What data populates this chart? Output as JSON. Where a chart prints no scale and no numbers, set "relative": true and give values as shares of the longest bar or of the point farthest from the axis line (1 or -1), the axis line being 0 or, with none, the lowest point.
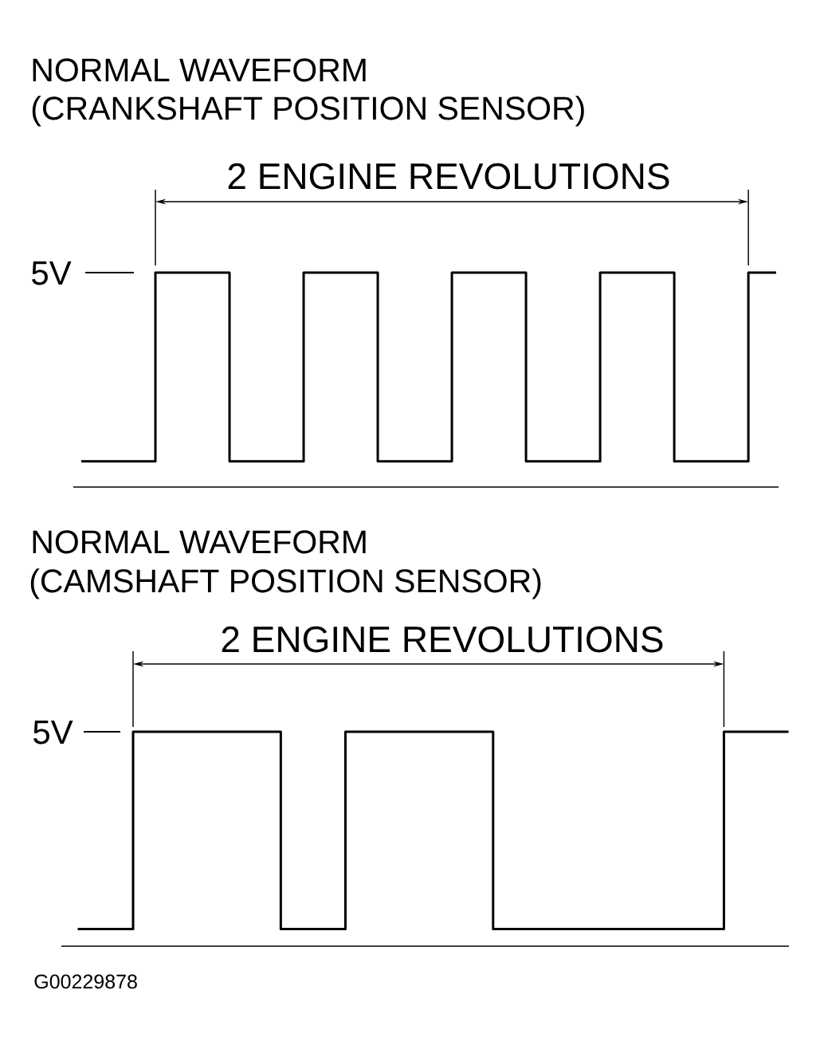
{
  "chart_data": [
    {
      "type": "step",
      "title": "NORMAL WAVEFORM",
      "subtitle": "(CRANKSHAFT POSITION SENSOR)",
      "relative": true,
      "categories": [
        null,
        null,
        null,
        null,
        null,
        null,
        null,
        null,
        null,
        null,
        null,
        null,
        null,
        null,
        null,
        null,
        null,
        null,
        null,
        null,
        null,
        null,
        null,
        null,
        null,
        null,
        null,
        null,
        null,
        null,
        null,
        null,
        null,
        null,
        null,
        null,
        null,
        null,
        null,
        null,
        null,
        null,
        null,
        null,
        null,
        null,
        null,
        null,
        null,
        null,
        null,
        null,
        null,
        null,
        null,
        null,
        null,
        null,
        null,
        null,
        null,
        null,
        null,
        null,
        null,
        null,
        null,
        null,
        null,
        null,
        null,
        null,
        null,
        null,
        null,
        null
      ],
      "series": [
        {
          "color": "#000000",
          "values": [
            0.12,
            0.12,
            0.12,
            0.12,
            0.12,
            0.12,
            0.12,
            0.12,
            1,
            1,
            1,
            1,
            1,
            1,
            1,
            1,
            0.12,
            0.12,
            0.12,
            0.12,
            0.12,
            0.12,
            0.12,
            0.12,
            1,
            1,
            1,
            1,
            1,
            1,
            1,
            1,
            0.12,
            0.12,
            0.12,
            0.12,
            0.12,
            0.12,
            0.12,
            0.12,
            1,
            1,
            1,
            1,
            1,
            1,
            1,
            1,
            0.12,
            0.12,
            0.12,
            0.12,
            0.12,
            0.12,
            0.12,
            0.12,
            1,
            1,
            1,
            1,
            1,
            1,
            1,
            1,
            0.12,
            0.12,
            0.12,
            0.12,
            0.12,
            0.12,
            0.12,
            0.12,
            1,
            1,
            1,
            1
          ]
        }
      ],
      "annotations": [
        "2 ENGINE REVOLUTIONS",
        "5V"
      ]
    },
    {
      "type": "step",
      "title": "NORMAL WAVEFORM",
      "subtitle": "(CAMSHAFT POSITION SENSOR)",
      "relative": true,
      "categories": [
        null,
        null,
        null,
        null,
        null,
        null,
        null,
        null,
        null,
        null,
        null,
        null,
        null,
        null,
        null,
        null,
        null,
        null,
        null,
        null,
        null,
        null,
        null,
        null,
        null,
        null,
        null,
        null,
        null,
        null,
        null,
        null,
        null,
        null,
        null,
        null,
        null,
        null,
        null,
        null,
        null,
        null,
        null,
        null,
        null,
        null,
        null,
        null,
        null,
        null,
        null,
        null,
        null,
        null,
        null,
        null,
        null,
        null,
        null,
        null,
        null,
        null,
        null,
        null,
        null,
        null,
        null,
        null,
        null,
        null,
        null,
        null,
        null,
        null,
        null,
        null,
        null,
        null
      ],
      "series": [
        {
          "color": "#000000",
          "values": [
            0.08,
            0.08,
            0.08,
            0.08,
            0.08,
            0.08,
            1,
            1,
            1,
            1,
            1,
            1,
            1,
            1,
            1,
            1,
            1,
            1,
            1,
            1,
            1,
            1,
            0.08,
            0.08,
            0.08,
            0.08,
            0.08,
            0.08,
            0.08,
            1,
            1,
            1,
            1,
            1,
            1,
            1,
            1,
            1,
            1,
            1,
            1,
            1,
            1,
            1,
            1,
            0.08,
            0.08,
            0.08,
            0.08,
            0.08,
            0.08,
            0.08,
            0.08,
            0.08,
            0.08,
            0.08,
            0.08,
            0.08,
            0.08,
            0.08,
            0.08,
            0.08,
            0.08,
            0.08,
            0.08,
            0.08,
            0.08,
            0.08,
            0.08,
            0.08,
            1,
            1,
            1,
            1,
            1,
            1,
            1,
            1
          ]
        }
      ],
      "annotations": [
        "2 ENGINE REVOLUTIONS",
        "5V",
        "G00229878"
      ]
    }
  ]
}
